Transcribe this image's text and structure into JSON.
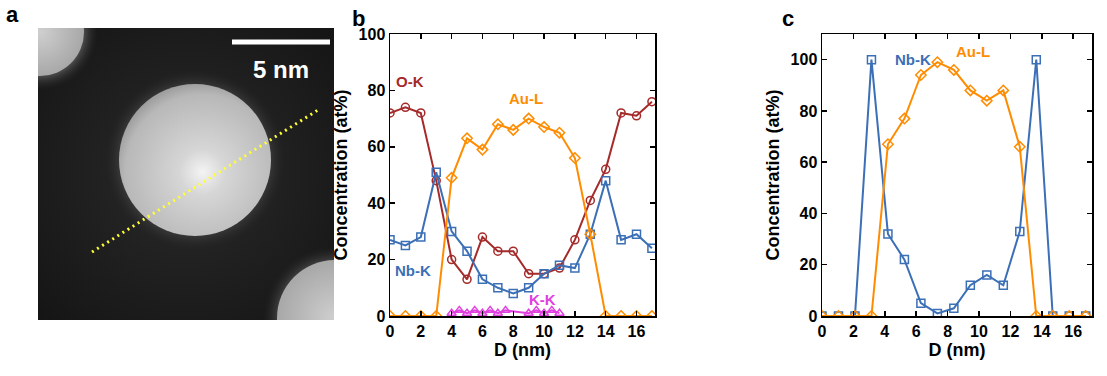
{
  "image": {
    "label": "a",
    "scale_bar": "5 nm"
  },
  "chart_data": [
    {
      "type": "line",
      "title": "b",
      "xlabel": "D (nm)",
      "ylabel": "Concentration (at%)",
      "xlim": [
        0,
        17.2
      ],
      "xticks": [
        0,
        2,
        4,
        6,
        8,
        10,
        12,
        14,
        16
      ],
      "ylim": [
        0,
        100
      ],
      "yticks": [
        0,
        20,
        40,
        60,
        80,
        100
      ],
      "series": [
        {
          "name": "O-K",
          "color": "#a52a2a",
          "marker": "circle-open",
          "x": [
            0,
            1,
            2,
            3,
            4,
            5,
            6,
            7,
            8,
            9,
            10,
            11,
            12,
            13,
            14,
            15,
            16,
            17
          ],
          "values": [
            72,
            74,
            72,
            48,
            20,
            13,
            28,
            23,
            23,
            15,
            15,
            17,
            27,
            41,
            52,
            72,
            71,
            76
          ]
        },
        {
          "name": "Nb-K",
          "color": "#3b6fb6",
          "marker": "square-open",
          "x": [
            0,
            1,
            2,
            3,
            4,
            5,
            6,
            7,
            8,
            9,
            10,
            11,
            12,
            13,
            14,
            15,
            16,
            17
          ],
          "values": [
            27,
            25,
            28,
            51,
            30,
            23,
            13,
            10,
            8,
            10,
            15,
            18,
            17,
            29,
            48,
            27,
            29,
            24
          ]
        },
        {
          "name": "Au-L",
          "color": "#ff8c00",
          "marker": "diamond-open",
          "x": [
            0,
            1,
            2,
            3,
            4,
            5,
            6,
            7,
            8,
            9,
            10,
            11,
            12,
            13,
            14,
            15,
            16,
            17
          ],
          "values": [
            0,
            0,
            0,
            0,
            49,
            63,
            59,
            68,
            66,
            70,
            67,
            65,
            56,
            29,
            0,
            0,
            0,
            0
          ]
        },
        {
          "name": "K-K",
          "color": "#e040e0",
          "marker": "triangle-up-open",
          "x": [
            4,
            4.5,
            5,
            5.5,
            6,
            6.5,
            7,
            7.5,
            9,
            9.5,
            10,
            10.5,
            11
          ],
          "values": [
            1,
            2,
            1,
            2,
            1,
            2,
            1,
            2,
            1,
            2,
            1,
            2,
            1
          ]
        }
      ]
    },
    {
      "type": "line",
      "title": "c",
      "xlabel": "D (nm)",
      "ylabel": "Concentration (at%)",
      "xlim": [
        0,
        17.2
      ],
      "xticks": [
        0,
        2,
        4,
        6,
        8,
        10,
        12,
        14,
        16
      ],
      "ylim": [
        0,
        110
      ],
      "yticks": [
        0,
        20,
        40,
        60,
        80,
        100
      ],
      "series": [
        {
          "name": "Nb-K",
          "color": "#3b6fb6",
          "marker": "square-open",
          "x": [
            0,
            1.05,
            2.1,
            3.15,
            4.2,
            5.25,
            6.3,
            7.35,
            8.4,
            9.45,
            10.5,
            11.55,
            12.6,
            13.65,
            14.7,
            15.75,
            16.8
          ],
          "values": [
            0,
            0,
            0,
            100,
            32,
            22,
            5,
            1,
            3,
            12,
            16,
            12,
            33,
            100,
            0,
            0,
            0
          ]
        },
        {
          "name": "Au-L",
          "color": "#ff8c00",
          "marker": "diamond-open",
          "x": [
            0,
            1.05,
            2.1,
            3.15,
            4.2,
            5.25,
            6.3,
            7.35,
            8.4,
            9.45,
            10.5,
            11.55,
            12.6,
            13.65,
            14.7,
            15.75,
            16.8
          ],
          "values": [
            0,
            0,
            0,
            0,
            67,
            77,
            94,
            99,
            96,
            88,
            84,
            88,
            66,
            0,
            0,
            0,
            0
          ]
        }
      ]
    }
  ]
}
